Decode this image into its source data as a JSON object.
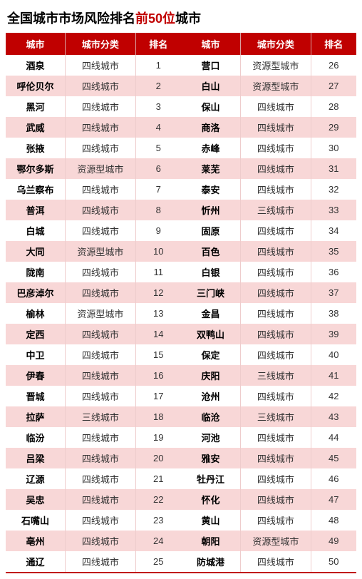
{
  "title_prefix": "全国城市市场风险排名",
  "title_highlight": "前50位",
  "title_suffix": "城市",
  "columns": {
    "city": "城市",
    "type": "城市分类",
    "rank": "排名"
  },
  "colors": {
    "header_bg": "#c00000",
    "header_fg": "#ffffff",
    "row_odd": "#ffffff",
    "row_even": "#f8d7d7",
    "highlight": "#c00000",
    "bottom_border": "#c00000"
  },
  "fonts": {
    "title_size": 18,
    "cell_size": 13,
    "title_weight": "bold",
    "city_weight": "bold"
  },
  "left": [
    {
      "city": "酒泉",
      "type": "四线城市",
      "rank": 1
    },
    {
      "city": "呼伦贝尔",
      "type": "四线城市",
      "rank": 2
    },
    {
      "city": "黑河",
      "type": "四线城市",
      "rank": 3
    },
    {
      "city": "武威",
      "type": "四线城市",
      "rank": 4
    },
    {
      "city": "张掖",
      "type": "四线城市",
      "rank": 5
    },
    {
      "city": "鄂尔多斯",
      "type": "资源型城市",
      "rank": 6
    },
    {
      "city": "乌兰察布",
      "type": "四线城市",
      "rank": 7
    },
    {
      "city": "普洱",
      "type": "四线城市",
      "rank": 8
    },
    {
      "city": "白城",
      "type": "四线城市",
      "rank": 9
    },
    {
      "city": "大同",
      "type": "资源型城市",
      "rank": 10
    },
    {
      "city": "陇南",
      "type": "四线城市",
      "rank": 11
    },
    {
      "city": "巴彦淖尔",
      "type": "四线城市",
      "rank": 12
    },
    {
      "city": "榆林",
      "type": "资源型城市",
      "rank": 13
    },
    {
      "city": "定西",
      "type": "四线城市",
      "rank": 14
    },
    {
      "city": "中卫",
      "type": "四线城市",
      "rank": 15
    },
    {
      "city": "伊春",
      "type": "四线城市",
      "rank": 16
    },
    {
      "city": "晋城",
      "type": "四线城市",
      "rank": 17
    },
    {
      "city": "拉萨",
      "type": "三线城市",
      "rank": 18
    },
    {
      "city": "临汾",
      "type": "四线城市",
      "rank": 19
    },
    {
      "city": "吕梁",
      "type": "四线城市",
      "rank": 20
    },
    {
      "city": "辽源",
      "type": "四线城市",
      "rank": 21
    },
    {
      "city": "吴忠",
      "type": "四线城市",
      "rank": 22
    },
    {
      "city": "石嘴山",
      "type": "四线城市",
      "rank": 23
    },
    {
      "city": "亳州",
      "type": "四线城市",
      "rank": 24
    },
    {
      "city": "通辽",
      "type": "四线城市",
      "rank": 25
    }
  ],
  "right": [
    {
      "city": "营口",
      "type": "资源型城市",
      "rank": 26
    },
    {
      "city": "白山",
      "type": "资源型城市",
      "rank": 27
    },
    {
      "city": "保山",
      "type": "四线城市",
      "rank": 28
    },
    {
      "city": "商洛",
      "type": "四线城市",
      "rank": 29
    },
    {
      "city": "赤峰",
      "type": "四线城市",
      "rank": 30
    },
    {
      "city": "莱芜",
      "type": "四线城市",
      "rank": 31
    },
    {
      "city": "泰安",
      "type": "四线城市",
      "rank": 32
    },
    {
      "city": "忻州",
      "type": "三线城市",
      "rank": 33
    },
    {
      "city": "固原",
      "type": "四线城市",
      "rank": 34
    },
    {
      "city": "百色",
      "type": "四线城市",
      "rank": 35
    },
    {
      "city": "白银",
      "type": "四线城市",
      "rank": 36
    },
    {
      "city": "三门峡",
      "type": "四线城市",
      "rank": 37
    },
    {
      "city": "金昌",
      "type": "四线城市",
      "rank": 38
    },
    {
      "city": "双鸭山",
      "type": "四线城市",
      "rank": 39
    },
    {
      "city": "保定",
      "type": "四线城市",
      "rank": 40
    },
    {
      "city": "庆阳",
      "type": "三线城市",
      "rank": 41
    },
    {
      "city": "沧州",
      "type": "四线城市",
      "rank": 42
    },
    {
      "city": "临沧",
      "type": "三线城市",
      "rank": 43
    },
    {
      "city": "河池",
      "type": "四线城市",
      "rank": 44
    },
    {
      "city": "雅安",
      "type": "四线城市",
      "rank": 45
    },
    {
      "city": "牡丹江",
      "type": "四线城市",
      "rank": 46
    },
    {
      "city": "怀化",
      "type": "四线城市",
      "rank": 47
    },
    {
      "city": "黄山",
      "type": "四线城市",
      "rank": 48
    },
    {
      "city": "朝阳",
      "type": "资源型城市",
      "rank": 49
    },
    {
      "city": "防城港",
      "type": "四线城市",
      "rank": 50
    }
  ]
}
